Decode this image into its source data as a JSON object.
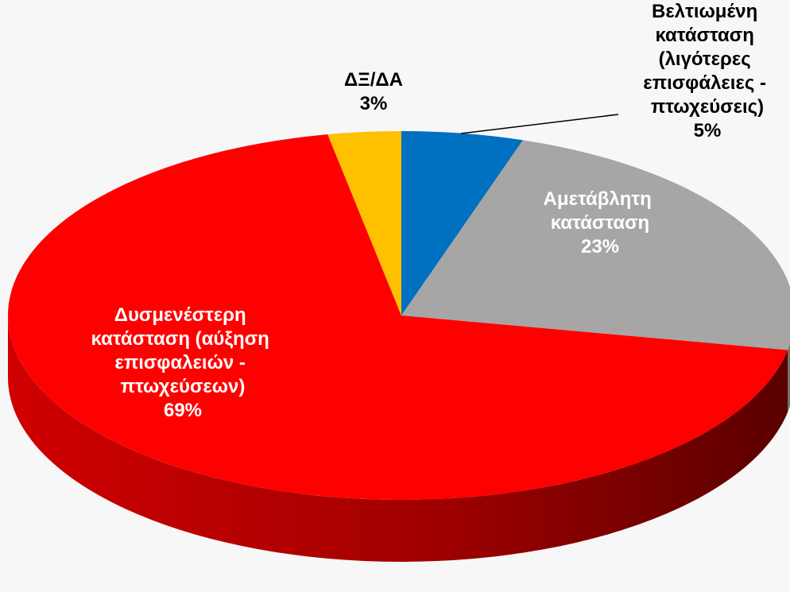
{
  "chart_data": {
    "type": "pie3d",
    "categories": [
      "Βελτιωμένη κατάσταση (λιγότερες επισφάλειες - πτωχεύσεις)",
      "Αμετάβλητη κατάσταση",
      "Δυσμενέστερη κατάσταση (αύξηση επισφαλειών - πτωχεύσεων)",
      "ΔΞ/ΔΑ"
    ],
    "values": [
      5,
      23,
      69,
      3
    ],
    "value_labels": [
      "5%",
      "23%",
      "69%",
      "3%"
    ],
    "colors": [
      "#0070c0",
      "#a6a6a6",
      "#ff0000",
      "#ffc000"
    ]
  }
}
